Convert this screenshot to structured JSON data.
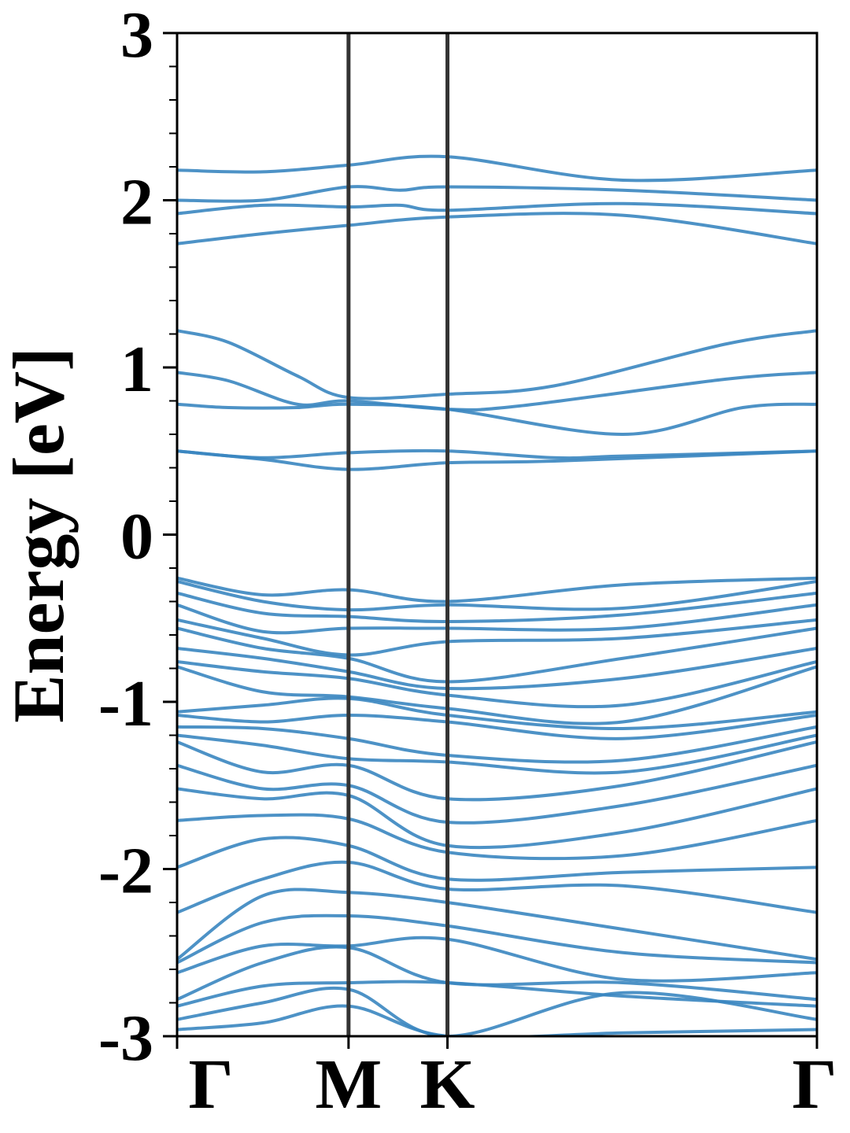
{
  "chart_data": {
    "type": "line",
    "title": "",
    "ylabel": "Energy [eV]",
    "xlabel": "",
    "ylim": [
      -3,
      3
    ],
    "y_ticks": [
      "-3",
      "-2",
      "-1",
      "0",
      "1",
      "2",
      "3"
    ],
    "x_ticks": [
      "Γ",
      "M",
      "K",
      "Γ"
    ],
    "k_path_positions": [
      0,
      1,
      1.577,
      3.732
    ],
    "grid": false,
    "legend": "none",
    "line_color": "#3a86c0",
    "vline_color": "#333333",
    "series": [
      {
        "x": [
          0,
          0.5,
          1,
          1.577,
          2.6,
          3.732
        ],
        "y": [
          2.18,
          2.17,
          2.21,
          2.26,
          2.12,
          2.18
        ]
      },
      {
        "x": [
          0,
          0.5,
          1,
          1.3,
          1.577,
          2.6,
          3.732
        ],
        "y": [
          2.0,
          2.0,
          2.08,
          2.06,
          2.08,
          2.06,
          2.0
        ]
      },
      {
        "x": [
          0,
          0.5,
          1,
          1.3,
          1.577,
          2.6,
          3.732
        ],
        "y": [
          1.92,
          1.97,
          1.96,
          1.97,
          1.94,
          1.98,
          1.92
        ]
      },
      {
        "x": [
          0,
          0.5,
          1,
          1.577,
          2.6,
          3.732
        ],
        "y": [
          1.74,
          1.8,
          1.85,
          1.9,
          1.91,
          1.74
        ]
      },
      {
        "x": [
          0,
          0.3,
          0.7,
          1,
          1.577,
          2.2,
          3.2,
          3.732
        ],
        "y": [
          1.22,
          1.15,
          0.95,
          0.82,
          0.84,
          0.89,
          1.14,
          1.22
        ]
      },
      {
        "x": [
          0,
          0.3,
          0.7,
          1,
          1.577,
          2.0,
          3.2,
          3.732
        ],
        "y": [
          0.97,
          0.92,
          0.78,
          0.8,
          0.75,
          0.77,
          0.93,
          0.97
        ]
      },
      {
        "x": [
          0,
          0.3,
          0.7,
          1,
          1.577,
          2.6,
          3.3,
          3.732
        ],
        "y": [
          0.78,
          0.76,
          0.76,
          0.78,
          0.75,
          0.6,
          0.76,
          0.78
        ]
      },
      {
        "x": [
          0,
          0.5,
          1,
          1.577,
          2.2,
          2.6,
          3.732
        ],
        "y": [
          0.5,
          0.46,
          0.49,
          0.5,
          0.46,
          0.47,
          0.5
        ]
      },
      {
        "x": [
          0,
          0.5,
          1,
          1.577,
          2.2,
          3.732
        ],
        "y": [
          0.5,
          0.45,
          0.39,
          0.43,
          0.44,
          0.5
        ]
      },
      {
        "x": [
          0,
          0.5,
          1,
          1.577,
          2.6,
          3.732
        ],
        "y": [
          -0.26,
          -0.36,
          -0.33,
          -0.4,
          -0.3,
          -0.26
        ]
      },
      {
        "x": [
          0,
          0.5,
          1,
          1.577,
          2.6,
          3.732
        ],
        "y": [
          -0.28,
          -0.4,
          -0.45,
          -0.42,
          -0.44,
          -0.28
        ]
      },
      {
        "x": [
          0,
          0.5,
          1,
          1.577,
          2.6,
          3.732
        ],
        "y": [
          -0.35,
          -0.47,
          -0.49,
          -0.52,
          -0.48,
          -0.35
        ]
      },
      {
        "x": [
          0,
          0.5,
          1,
          1.577,
          2.6,
          3.732
        ],
        "y": [
          -0.42,
          -0.58,
          -0.56,
          -0.56,
          -0.56,
          -0.42
        ]
      },
      {
        "x": [
          0,
          0.5,
          1,
          1.577,
          2.6,
          3.732
        ],
        "y": [
          -0.51,
          -0.62,
          -0.72,
          -0.64,
          -0.62,
          -0.51
        ]
      },
      {
        "x": [
          0,
          0.5,
          1,
          1.577,
          2.6,
          3.732
        ],
        "y": [
          -0.56,
          -0.68,
          -0.74,
          -0.88,
          -0.74,
          -0.56
        ]
      },
      {
        "x": [
          0,
          0.5,
          1,
          1.577,
          2.6,
          3.732
        ],
        "y": [
          -0.68,
          -0.74,
          -0.82,
          -0.92,
          -0.86,
          -0.68
        ]
      },
      {
        "x": [
          0,
          0.5,
          1,
          1.577,
          2.6,
          3.732
        ],
        "y": [
          -0.76,
          -0.82,
          -0.86,
          -0.96,
          -1.02,
          -0.76
        ]
      },
      {
        "x": [
          0,
          0.5,
          1,
          1.577,
          2.6,
          3.732
        ],
        "y": [
          -0.79,
          -0.94,
          -0.97,
          -1.04,
          -1.12,
          -0.79
        ]
      },
      {
        "x": [
          0,
          0.5,
          1,
          1.577,
          2.6,
          3.732
        ],
        "y": [
          -1.06,
          -1.02,
          -0.98,
          -1.08,
          -1.16,
          -1.06
        ]
      },
      {
        "x": [
          0,
          0.5,
          1,
          1.577,
          2.6,
          3.732
        ],
        "y": [
          -1.08,
          -1.12,
          -1.08,
          -1.12,
          -1.22,
          -1.08
        ]
      },
      {
        "x": [
          0,
          0.5,
          1,
          1.577,
          2.6,
          3.732
        ],
        "y": [
          -1.15,
          -1.16,
          -1.22,
          -1.32,
          -1.35,
          -1.15
        ]
      },
      {
        "x": [
          0,
          0.5,
          1,
          1.577,
          2.6,
          3.732
        ],
        "y": [
          -1.2,
          -1.26,
          -1.34,
          -1.36,
          -1.42,
          -1.2
        ]
      },
      {
        "x": [
          0,
          0.5,
          1,
          1.577,
          2.6,
          3.732
        ],
        "y": [
          -1.24,
          -1.42,
          -1.38,
          -1.58,
          -1.5,
          -1.24
        ]
      },
      {
        "x": [
          0,
          0.5,
          1,
          1.577,
          2.6,
          3.732
        ],
        "y": [
          -1.38,
          -1.52,
          -1.5,
          -1.72,
          -1.62,
          -1.38
        ]
      },
      {
        "x": [
          0,
          0.5,
          1,
          1.577,
          2.6,
          3.732
        ],
        "y": [
          -1.52,
          -1.58,
          -1.56,
          -1.86,
          -1.78,
          -1.52
        ]
      },
      {
        "x": [
          0,
          0.5,
          1,
          1.577,
          2.6,
          3.732
        ],
        "y": [
          -1.71,
          -1.68,
          -1.7,
          -1.9,
          -1.92,
          -1.71
        ]
      },
      {
        "x": [
          0,
          0.5,
          1,
          1.577,
          2.6,
          3.732
        ],
        "y": [
          -1.99,
          -1.82,
          -1.86,
          -2.06,
          -2.02,
          -1.99
        ]
      },
      {
        "x": [
          0,
          0.5,
          1,
          1.577,
          2.6,
          3.732
        ],
        "y": [
          -2.26,
          -2.06,
          -1.96,
          -2.12,
          -2.1,
          -2.26
        ]
      },
      {
        "x": [
          0,
          0.5,
          1,
          1.577,
          2.6,
          3.732
        ],
        "y": [
          -2.54,
          -2.16,
          -2.14,
          -2.2,
          -2.36,
          -2.54
        ]
      },
      {
        "x": [
          0,
          0.5,
          1,
          1.577,
          2.6,
          3.732
        ],
        "y": [
          -2.56,
          -2.32,
          -2.28,
          -2.34,
          -2.5,
          -2.56
        ]
      },
      {
        "x": [
          0,
          0.5,
          1,
          1.577,
          2.6,
          3.732
        ],
        "y": [
          -2.62,
          -2.46,
          -2.46,
          -2.42,
          -2.66,
          -2.62
        ]
      },
      {
        "x": [
          0,
          0.5,
          1,
          1.577,
          2.6,
          3.732
        ],
        "y": [
          -2.78,
          -2.56,
          -2.47,
          -2.68,
          -2.68,
          -2.78
        ]
      },
      {
        "x": [
          0,
          0.5,
          1,
          1.577,
          2.6,
          3.732
        ],
        "y": [
          -2.82,
          -2.7,
          -2.68,
          -2.68,
          -2.76,
          -2.82
        ]
      },
      {
        "x": [
          0,
          0.5,
          1,
          1.577,
          2.6,
          3.732
        ],
        "y": [
          -2.9,
          -2.8,
          -2.72,
          -3.0,
          -2.74,
          -2.9
        ]
      },
      {
        "x": [
          0,
          0.5,
          1,
          1.577,
          2.6,
          3.732
        ],
        "y": [
          -2.96,
          -2.92,
          -2.82,
          -3.0,
          -2.98,
          -2.96
        ]
      }
    ]
  }
}
